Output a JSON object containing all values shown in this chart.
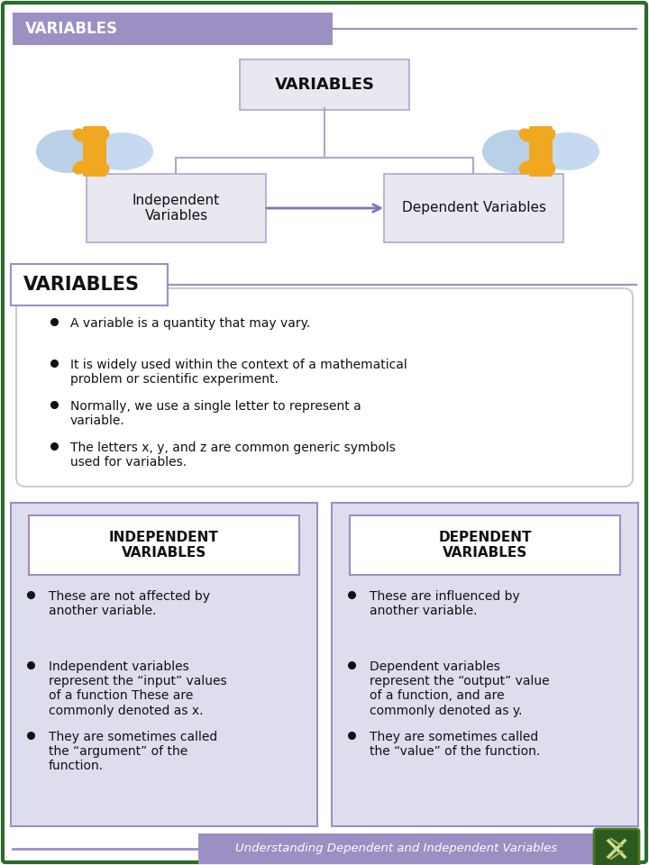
{
  "bg_color": "#ffffff",
  "border_color": "#2d6a2d",
  "header_bg": "#9b8fc4",
  "header_text_color": "#ffffff",
  "header_title": "VARIABLES",
  "main_title": "VARIABLES",
  "node_left": "Independent\nVariables",
  "node_right": "Dependent Variables",
  "section2_title": "VARIABLES",
  "variables_bullets": [
    "A variable is a quantity that may vary.",
    "It is widely used within the context of a mathematical\nproblem or scientific experiment.",
    "Normally, we use a single letter to represent a\nvariable.",
    "The letters x, y, and z are common generic symbols\nused for variables."
  ],
  "left_panel_title": "INDEPENDENT\nVARIABLES",
  "left_panel_bullets": [
    "These are not affected by\nanother variable.",
    "Independent variables\nrepresent the “input” values\nof a function These are\ncommonly denoted as x.",
    "They are sometimes called\nthe “argument” of the\nfunction."
  ],
  "right_panel_title": "DEPENDENT\nVARIABLES",
  "right_panel_bullets": [
    "These are influenced by\nanother variable.",
    "Dependent variables\nrepresent the “output” value\nof a function, and are\ncommonly denoted as y.",
    "They are sometimes called\nthe “value” of the function."
  ],
  "footer_text": "Understanding Dependent and Independent Variables",
  "footer_bg": "#9b8fc4",
  "footer_text_color": "#ffffff",
  "arrow_color": "#7777bb",
  "line_color": "#aaaacc",
  "panel_bg": "#dddded",
  "panel_border": "#9b8fc4",
  "box_bg": "#e8e8f0",
  "content_box_bg": "#f5f5ff",
  "white": "#ffffff"
}
